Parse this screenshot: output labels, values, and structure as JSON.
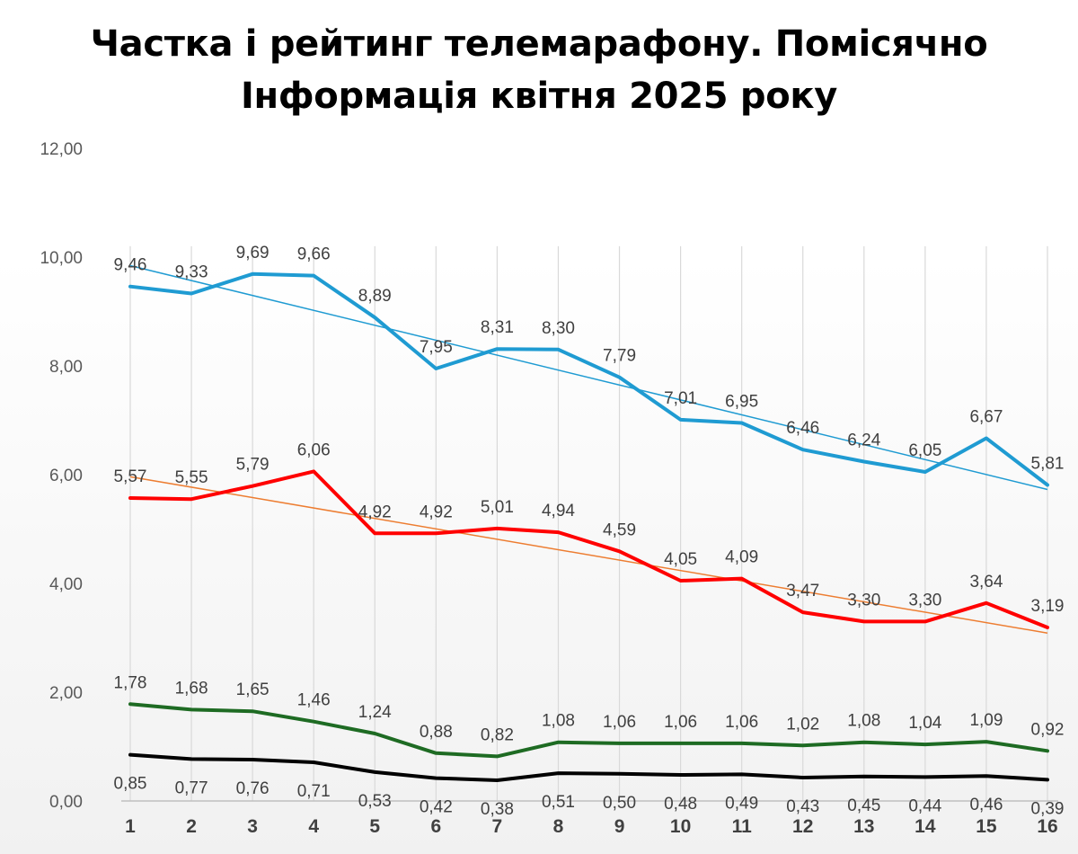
{
  "title": {
    "line1": "Частка і рейтинг телемарафону. Помісячно",
    "line2": "Інформація квітня 2025 року"
  },
  "colors": {
    "blue": "#1f9bd2",
    "red": "#ff0000",
    "green": "#1e6b23",
    "black": "#000000",
    "blue_trend": "#1f9bd2",
    "red_trend": "#ed7d31",
    "grid": "#d9d9d9"
  },
  "chart_data": {
    "type": "line",
    "title": "Частка і рейтинг телемарафону. Помісячно Інформація квітня 2025 року",
    "xlabel": "",
    "ylabel": "",
    "categories": [
      "1",
      "2",
      "3",
      "4",
      "5",
      "6",
      "7",
      "8",
      "9",
      "10",
      "11",
      "12",
      "13",
      "14",
      "15",
      "16"
    ],
    "ylim": [
      0,
      12
    ],
    "yticks": [
      "0,00",
      "2,00",
      "4,00",
      "6,00",
      "8,00",
      "10,00",
      "12,00"
    ],
    "grid": "vertical",
    "legend": "none",
    "series": [
      {
        "values": [
          9.46,
          9.33,
          9.69,
          9.66,
          8.89,
          7.95,
          8.31,
          8.3,
          7.79,
          7.01,
          6.95,
          6.46,
          6.24,
          6.05,
          6.67,
          5.81
        ],
        "labels": [
          "9,46",
          "9,33",
          "9,69",
          "9,66",
          "8,89",
          "7,95",
          "8,31",
          "8,30",
          "7,79",
          "7,01",
          "6,95",
          "6,46",
          "6,24",
          "6,05",
          "6,67",
          "5,81"
        ],
        "color": "#1f9bd2",
        "trendline": "linear"
      },
      {
        "values": [
          5.57,
          5.55,
          5.79,
          6.06,
          4.92,
          4.92,
          5.01,
          4.94,
          4.59,
          4.05,
          4.09,
          3.47,
          3.3,
          3.3,
          3.64,
          3.19
        ],
        "labels": [
          "5,57",
          "5,55",
          "5,79",
          "6,06",
          "4,92",
          "4,92",
          "5,01",
          "4,94",
          "4,59",
          "4,05",
          "4,09",
          "3,47",
          "3,30",
          "3,30",
          "3,64",
          "3,19"
        ],
        "color": "#ff0000",
        "trendline": "linear"
      },
      {
        "values": [
          1.78,
          1.68,
          1.65,
          1.46,
          1.24,
          0.88,
          0.82,
          1.08,
          1.06,
          1.06,
          1.06,
          1.02,
          1.08,
          1.04,
          1.09,
          0.92
        ],
        "labels": [
          "1,78",
          "1,68",
          "1,65",
          "1,46",
          "1,24",
          "0,88",
          "0,82",
          "1,08",
          "1,06",
          "1,06",
          "1,06",
          "1,02",
          "1,08",
          "1,04",
          "1,09",
          "0,92"
        ],
        "color": "#1e6b23"
      },
      {
        "values": [
          0.85,
          0.77,
          0.76,
          0.71,
          0.53,
          0.42,
          0.38,
          0.51,
          0.5,
          0.48,
          0.49,
          0.43,
          0.45,
          0.44,
          0.46,
          0.39
        ],
        "labels": [
          "0,85",
          "0,77",
          "0,76",
          "0,71",
          "0,53",
          "0,42",
          "0,38",
          "0,51",
          "0,50",
          "0,48",
          "0,49",
          "0,43",
          "0,45",
          "0,44",
          "0,46",
          "0,39"
        ],
        "color": "#000000"
      }
    ]
  }
}
